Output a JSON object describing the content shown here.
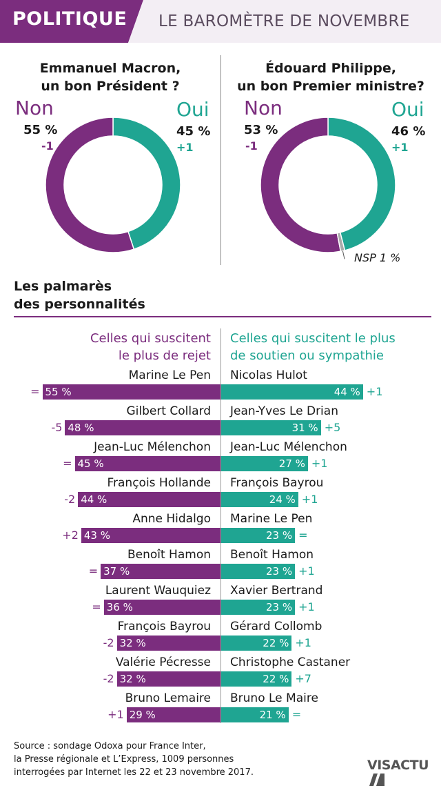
{
  "header": {
    "tag": "POLITIQUE",
    "subtitle": "LE BAROMÈTRE DE NOVEMBRE",
    "colors": {
      "purple": "#7b2d7e",
      "teal": "#1fa592"
    }
  },
  "chart_data": [
    {
      "type": "pie",
      "title": "Emmanuel Macron,\nun bon Président ?",
      "title_lines": [
        "Emmanuel Macron,",
        "un bon Président ?"
      ],
      "slices": [
        {
          "label": "Non",
          "value": 55,
          "value_text": "55 %",
          "change": "-1",
          "color": "#7b2d7e"
        },
        {
          "label": "Oui",
          "value": 45,
          "value_text": "45 %",
          "change": "+1",
          "color": "#1fa592"
        }
      ]
    },
    {
      "type": "pie",
      "title": "Édouard Philippe,\nun bon Premier ministre?",
      "title_lines": [
        "Édouard Philippe,",
        "un bon Premier ministre?"
      ],
      "slices": [
        {
          "label": "Non",
          "value": 53,
          "value_text": "53 %",
          "change": "-1",
          "color": "#7b2d7e"
        },
        {
          "label": "Oui",
          "value": 46,
          "value_text": "46 %",
          "change": "+1",
          "color": "#1fa592"
        },
        {
          "label": "NSP",
          "value": 1,
          "value_text": "NSP 1 %",
          "color": "#aaaaaa"
        }
      ]
    },
    {
      "type": "bar",
      "title": "Les palmarès des personnalités",
      "title_lines": [
        "Les palmarès",
        "des personnalités"
      ],
      "left_header_lines": [
        "Celles qui suscitent",
        "le plus de rejet"
      ],
      "right_header_lines": [
        "Celles qui suscitent le plus",
        "de soutien ou sympathie"
      ],
      "rejection": [
        {
          "name": "Marine Le Pen",
          "value": 55,
          "label": "55 %",
          "change": "="
        },
        {
          "name": "Gilbert Collard",
          "value": 48,
          "label": "48 %",
          "change": "-5"
        },
        {
          "name": "Jean-Luc Mélenchon",
          "value": 45,
          "label": "45 %",
          "change": "="
        },
        {
          "name": "François Hollande",
          "value": 44,
          "label": "44 %",
          "change": "-2"
        },
        {
          "name": "Anne Hidalgo",
          "value": 43,
          "label": "43 %",
          "change": "+2"
        },
        {
          "name": "Benoît Hamon",
          "value": 37,
          "label": "37 %",
          "change": "="
        },
        {
          "name": "Laurent Wauquiez",
          "value": 36,
          "label": "36 %",
          "change": "="
        },
        {
          "name": "François Bayrou",
          "value": 32,
          "label": "32 %",
          "change": "-2"
        },
        {
          "name": "Valérie Pécresse",
          "value": 32,
          "label": "32 %",
          "change": "-2"
        },
        {
          "name": "Bruno Lemaire",
          "value": 29,
          "label": "29 %",
          "change": "+1"
        }
      ],
      "support": [
        {
          "name": "Nicolas Hulot",
          "value": 44,
          "label": "44 %",
          "change": "+1"
        },
        {
          "name": "Jean-Yves Le Drian",
          "value": 31,
          "label": "31 %",
          "change": "+5"
        },
        {
          "name": "Jean-Luc Mélenchon",
          "value": 27,
          "label": "27 %",
          "change": "+1"
        },
        {
          "name": "François Bayrou",
          "value": 24,
          "label": "24 %",
          "change": "+1"
        },
        {
          "name": "Marine Le Pen",
          "value": 23,
          "label": "23 %",
          "change": "="
        },
        {
          "name": "Benoît Hamon",
          "value": 23,
          "label": "23 %",
          "change": "+1"
        },
        {
          "name": "Xavier Bertrand",
          "value": 23,
          "label": "23 %",
          "change": "+1"
        },
        {
          "name": "Gérard Collomb",
          "value": 22,
          "label": "22 %",
          "change": "+1"
        },
        {
          "name": "Christophe Castaner",
          "value": 22,
          "label": "22 %",
          "change": "+7"
        },
        {
          "name": "Bruno Le Maire",
          "value": 21,
          "label": "21 %",
          "change": "="
        }
      ]
    }
  ],
  "footer": {
    "source_lines": [
      "Source : sondage Odoxa pour France Inter,",
      "la Presse régionale et L’Express, 1009 personnes",
      "interrogées par Internet les 22 et 23 novembre 2017."
    ],
    "logo": "VISACTU"
  }
}
